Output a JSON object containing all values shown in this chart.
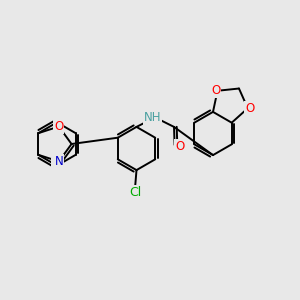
{
  "bg_color": "#e8e8e8",
  "bond_color": "#000000",
  "bond_width": 1.4,
  "atom_colors": {
    "O": "#ff0000",
    "N": "#0000cc",
    "Cl": "#00aa00",
    "H": "#4aa0a0"
  },
  "font_size": 8.5,
  "figsize": [
    3.0,
    3.0
  ],
  "dpi": 100
}
